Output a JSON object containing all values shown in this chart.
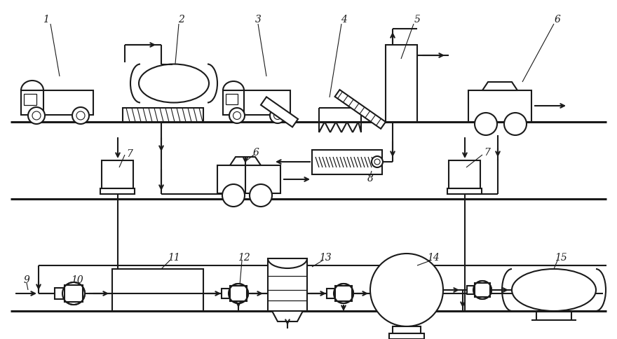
{
  "bg_color": "#ffffff",
  "line_color": "#1a1a1a",
  "lw": 1.5,
  "fig_width": 8.8,
  "fig_height": 4.85
}
